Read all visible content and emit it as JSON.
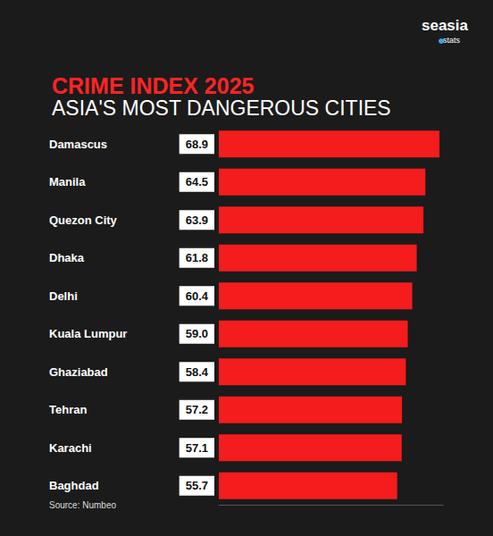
{
  "chart_data": {
    "type": "bar",
    "title": "CRIME INDEX 2025",
    "subtitle": "ASIA'S MOST DANGEROUS CITIES",
    "annotations": {
      "brand": "seasia",
      "brand_tag": "stats",
      "source": "Source: Numbeo"
    },
    "categories": [
      "Damascus",
      "Manila",
      "Quezon City",
      "Dhaka",
      "Delhi",
      "Kuala Lumpur",
      "Ghaziabad",
      "Tehran",
      "Karachi",
      "Baghdad"
    ],
    "values": [
      68.9,
      64.5,
      63.9,
      61.8,
      60.4,
      59.0,
      58.4,
      57.2,
      57.1,
      55.7
    ],
    "value_labels": [
      "68.9",
      "64.5",
      "63.9",
      "61.8",
      "60.4",
      "59.0",
      "58.4",
      "57.2",
      "57.1",
      "55.7"
    ],
    "color": "#f41c1c",
    "xlim": [
      0,
      70
    ],
    "orientation": "horizontal",
    "data_labels": true,
    "tick_labels": false,
    "grid": false
  }
}
